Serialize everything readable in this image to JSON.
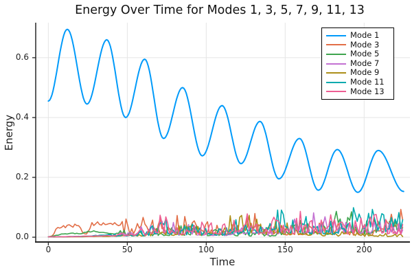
{
  "title": "Energy Over Time for Modes 1, 3, 5, 7, 9, 11, 13",
  "chart_data": {
    "type": "line",
    "title": "Energy Over Time for Modes 1, 3, 5, 7, 9, 11, 13",
    "xlabel": "Time",
    "ylabel": "Energy",
    "xlim": [
      -8,
      229
    ],
    "ylim": [
      -0.016,
      0.717
    ],
    "x_ticks": [
      0,
      50,
      100,
      150,
      200
    ],
    "y_ticks": [
      0.0,
      0.2,
      0.4,
      0.6
    ],
    "grid": true,
    "legend_position": "top-right",
    "background": "#ffffff",
    "grid_color": "#e5e5e5",
    "axis_color": "#262626",
    "series": [
      {
        "name": "Mode 1",
        "color": "#009AFA",
        "style": "oscillation",
        "linewidth": 2,
        "keypoints": [
          [
            0,
            0.455
          ],
          [
            12,
            0.695
          ],
          [
            24.5,
            0.445
          ],
          [
            37,
            0.66
          ],
          [
            49,
            0.4
          ],
          [
            61,
            0.595
          ],
          [
            73,
            0.33
          ],
          [
            85,
            0.5
          ],
          [
            97.5,
            0.272
          ],
          [
            110,
            0.44
          ],
          [
            122,
            0.246
          ],
          [
            134,
            0.387
          ],
          [
            146,
            0.195
          ],
          [
            159,
            0.33
          ],
          [
            171,
            0.157
          ],
          [
            183,
            0.293
          ],
          [
            196,
            0.15
          ],
          [
            209,
            0.29
          ],
          [
            225,
            0.153
          ]
        ]
      },
      {
        "name": "Mode 3",
        "color": "#E26E47",
        "style": "noisy",
        "linewidth": 1.6,
        "seed": 3,
        "noise_start": 45,
        "envelope": [
          [
            0,
            0.001
          ],
          [
            3,
            0.004
          ],
          [
            5,
            0.03
          ],
          [
            8,
            0.034
          ],
          [
            12,
            0.035
          ],
          [
            16,
            0.038
          ],
          [
            20,
            0.04
          ],
          [
            22,
            0.01
          ],
          [
            25,
            0.012
          ],
          [
            27,
            0.042
          ],
          [
            31,
            0.046
          ],
          [
            35,
            0.043
          ],
          [
            39,
            0.047
          ],
          [
            43,
            0.044
          ],
          [
            46,
            0.028
          ],
          [
            50,
            0.034
          ],
          [
            55,
            0.04
          ],
          [
            60,
            0.037
          ],
          [
            65,
            0.034
          ],
          [
            70,
            0.04
          ],
          [
            75,
            0.034
          ],
          [
            80,
            0.038
          ],
          [
            85,
            0.044
          ],
          [
            90,
            0.04
          ],
          [
            95,
            0.03
          ],
          [
            100,
            0.034
          ],
          [
            105,
            0.038
          ],
          [
            110,
            0.028
          ],
          [
            115,
            0.024
          ],
          [
            120,
            0.03
          ],
          [
            125,
            0.044
          ],
          [
            130,
            0.05
          ],
          [
            135,
            0.044
          ],
          [
            140,
            0.034
          ],
          [
            145,
            0.028
          ],
          [
            150,
            0.024
          ],
          [
            155,
            0.03
          ],
          [
            160,
            0.028
          ],
          [
            165,
            0.024
          ],
          [
            170,
            0.03
          ],
          [
            175,
            0.034
          ],
          [
            180,
            0.03
          ],
          [
            185,
            0.024
          ],
          [
            190,
            0.02
          ],
          [
            195,
            0.016
          ],
          [
            200,
            0.02
          ],
          [
            205,
            0.024
          ],
          [
            210,
            0.03
          ],
          [
            215,
            0.04
          ],
          [
            220,
            0.06
          ],
          [
            225,
            0.08
          ]
        ]
      },
      {
        "name": "Mode 5",
        "color": "#3EA44E",
        "style": "noisy",
        "linewidth": 1.6,
        "seed": 5,
        "noise_start": 45,
        "envelope": [
          [
            0,
            0.0005
          ],
          [
            4,
            0.005
          ],
          [
            10,
            0.01
          ],
          [
            15,
            0.012
          ],
          [
            20,
            0.012
          ],
          [
            25,
            0.017
          ],
          [
            30,
            0.019
          ],
          [
            35,
            0.014
          ],
          [
            40,
            0.012
          ],
          [
            45,
            0.012
          ],
          [
            50,
            0.014
          ],
          [
            55,
            0.012
          ],
          [
            60,
            0.012
          ],
          [
            65,
            0.014
          ],
          [
            70,
            0.018
          ],
          [
            75,
            0.02
          ],
          [
            80,
            0.024
          ],
          [
            85,
            0.02
          ],
          [
            90,
            0.024
          ],
          [
            95,
            0.02
          ],
          [
            100,
            0.015
          ],
          [
            105,
            0.014
          ],
          [
            110,
            0.012
          ],
          [
            115,
            0.012
          ],
          [
            120,
            0.014
          ],
          [
            125,
            0.012
          ],
          [
            130,
            0.012
          ],
          [
            135,
            0.014
          ],
          [
            140,
            0.01
          ],
          [
            145,
            0.014
          ],
          [
            150,
            0.02
          ],
          [
            155,
            0.024
          ],
          [
            160,
            0.038
          ],
          [
            165,
            0.03
          ],
          [
            170,
            0.024
          ],
          [
            175,
            0.03
          ],
          [
            180,
            0.04
          ],
          [
            185,
            0.058
          ],
          [
            188,
            0.07
          ],
          [
            191,
            0.06
          ],
          [
            194,
            0.065
          ],
          [
            197,
            0.045
          ],
          [
            200,
            0.03
          ],
          [
            205,
            0.034
          ],
          [
            210,
            0.048
          ],
          [
            215,
            0.044
          ],
          [
            220,
            0.04
          ],
          [
            225,
            0.034
          ]
        ]
      },
      {
        "name": "Mode 7",
        "color": "#C371D2",
        "style": "noisy",
        "linewidth": 1.6,
        "seed": 7,
        "noise_start": 42,
        "envelope": [
          [
            0,
            0.0005
          ],
          [
            10,
            0.001
          ],
          [
            20,
            0.002
          ],
          [
            30,
            0.003
          ],
          [
            40,
            0.005
          ],
          [
            45,
            0.01
          ],
          [
            50,
            0.014
          ],
          [
            55,
            0.018
          ],
          [
            60,
            0.02
          ],
          [
            65,
            0.024
          ],
          [
            70,
            0.032
          ],
          [
            75,
            0.038
          ],
          [
            80,
            0.03
          ],
          [
            85,
            0.024
          ],
          [
            90,
            0.028
          ],
          [
            95,
            0.024
          ],
          [
            100,
            0.018
          ],
          [
            105,
            0.018
          ],
          [
            110,
            0.014
          ],
          [
            115,
            0.018
          ],
          [
            120,
            0.02
          ],
          [
            125,
            0.015
          ],
          [
            130,
            0.02
          ],
          [
            135,
            0.024
          ],
          [
            140,
            0.02
          ],
          [
            145,
            0.024
          ],
          [
            150,
            0.03
          ],
          [
            155,
            0.034
          ],
          [
            160,
            0.04
          ],
          [
            165,
            0.044
          ],
          [
            170,
            0.05
          ],
          [
            175,
            0.05
          ],
          [
            180,
            0.044
          ],
          [
            185,
            0.04
          ],
          [
            190,
            0.034
          ],
          [
            195,
            0.03
          ],
          [
            200,
            0.04
          ],
          [
            205,
            0.044
          ],
          [
            210,
            0.04
          ],
          [
            215,
            0.034
          ],
          [
            220,
            0.03
          ],
          [
            225,
            0.03
          ]
        ]
      },
      {
        "name": "Mode 9",
        "color": "#AC8E18",
        "style": "noisy",
        "linewidth": 1.6,
        "seed": 9,
        "noise_start": 55,
        "envelope": [
          [
            0,
            0.0005
          ],
          [
            20,
            0.001
          ],
          [
            40,
            0.003
          ],
          [
            55,
            0.006
          ],
          [
            60,
            0.01
          ],
          [
            65,
            0.014
          ],
          [
            70,
            0.02
          ],
          [
            75,
            0.024
          ],
          [
            80,
            0.02
          ],
          [
            85,
            0.024
          ],
          [
            90,
            0.03
          ],
          [
            95,
            0.024
          ],
          [
            100,
            0.02
          ],
          [
            105,
            0.024
          ],
          [
            110,
            0.03
          ],
          [
            115,
            0.044
          ],
          [
            120,
            0.05
          ],
          [
            125,
            0.044
          ],
          [
            130,
            0.04
          ],
          [
            135,
            0.034
          ],
          [
            140,
            0.03
          ],
          [
            145,
            0.034
          ],
          [
            150,
            0.03
          ],
          [
            155,
            0.024
          ],
          [
            160,
            0.03
          ],
          [
            165,
            0.02
          ],
          [
            170,
            0.014
          ],
          [
            175,
            0.014
          ],
          [
            180,
            0.012
          ],
          [
            185,
            0.01
          ],
          [
            190,
            0.012
          ],
          [
            195,
            0.01
          ],
          [
            200,
            0.008
          ],
          [
            205,
            0.008
          ],
          [
            210,
            0.006
          ],
          [
            215,
            0.008
          ],
          [
            220,
            0.006
          ],
          [
            225,
            0.006
          ]
        ]
      },
      {
        "name": "Mode 11",
        "color": "#00AAAE",
        "style": "noisy",
        "linewidth": 1.6,
        "seed": 11,
        "noise_start": 40,
        "envelope": [
          [
            0,
            0.0005
          ],
          [
            20,
            0.002
          ],
          [
            40,
            0.008
          ],
          [
            45,
            0.012
          ],
          [
            50,
            0.014
          ],
          [
            55,
            0.012
          ],
          [
            60,
            0.014
          ],
          [
            65,
            0.02
          ],
          [
            70,
            0.03
          ],
          [
            75,
            0.034
          ],
          [
            80,
            0.024
          ],
          [
            85,
            0.02
          ],
          [
            90,
            0.024
          ],
          [
            95,
            0.03
          ],
          [
            100,
            0.024
          ],
          [
            105,
            0.02
          ],
          [
            110,
            0.024
          ],
          [
            115,
            0.03
          ],
          [
            120,
            0.034
          ],
          [
            125,
            0.03
          ],
          [
            130,
            0.024
          ],
          [
            135,
            0.03
          ],
          [
            140,
            0.04
          ],
          [
            145,
            0.054
          ],
          [
            148,
            0.058
          ],
          [
            151,
            0.05
          ],
          [
            155,
            0.04
          ],
          [
            160,
            0.05
          ],
          [
            165,
            0.04
          ],
          [
            170,
            0.034
          ],
          [
            175,
            0.03
          ],
          [
            180,
            0.034
          ],
          [
            185,
            0.04
          ],
          [
            190,
            0.05
          ],
          [
            195,
            0.068
          ],
          [
            197,
            0.075
          ],
          [
            200,
            0.06
          ],
          [
            205,
            0.054
          ],
          [
            210,
            0.06
          ],
          [
            215,
            0.064
          ],
          [
            219,
            0.07
          ],
          [
            225,
            0.058
          ]
        ]
      },
      {
        "name": "Mode 13",
        "color": "#ED5E93",
        "style": "noisy",
        "linewidth": 1.6,
        "seed": 13,
        "noise_start": 40,
        "envelope": [
          [
            0,
            0.0005
          ],
          [
            20,
            0.002
          ],
          [
            40,
            0.005
          ],
          [
            45,
            0.01
          ],
          [
            50,
            0.014
          ],
          [
            55,
            0.014
          ],
          [
            60,
            0.02
          ],
          [
            65,
            0.024
          ],
          [
            70,
            0.04
          ],
          [
            73,
            0.045
          ],
          [
            76,
            0.04
          ],
          [
            80,
            0.03
          ],
          [
            85,
            0.03
          ],
          [
            90,
            0.034
          ],
          [
            95,
            0.03
          ],
          [
            100,
            0.03
          ],
          [
            105,
            0.024
          ],
          [
            110,
            0.03
          ],
          [
            115,
            0.05
          ],
          [
            118,
            0.065
          ],
          [
            121,
            0.07
          ],
          [
            124,
            0.06
          ],
          [
            127,
            0.04
          ],
          [
            130,
            0.03
          ],
          [
            135,
            0.03
          ],
          [
            140,
            0.03
          ],
          [
            145,
            0.044
          ],
          [
            150,
            0.05
          ],
          [
            155,
            0.044
          ],
          [
            160,
            0.05
          ],
          [
            163,
            0.054
          ],
          [
            166,
            0.044
          ],
          [
            170,
            0.04
          ],
          [
            175,
            0.04
          ],
          [
            180,
            0.044
          ],
          [
            185,
            0.04
          ],
          [
            190,
            0.034
          ],
          [
            195,
            0.034
          ],
          [
            200,
            0.04
          ],
          [
            205,
            0.044
          ],
          [
            210,
            0.04
          ],
          [
            215,
            0.034
          ],
          [
            220,
            0.03
          ],
          [
            225,
            0.03
          ]
        ]
      }
    ]
  },
  "legend": {
    "entries": [
      "Mode 1",
      "Mode 3",
      "Mode 5",
      "Mode 7",
      "Mode 9",
      "Mode 11",
      "Mode 13"
    ]
  }
}
